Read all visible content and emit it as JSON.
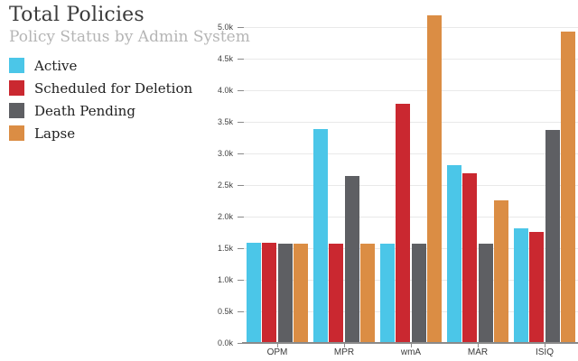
{
  "chart_data": {
    "type": "bar",
    "title": "Total Policies",
    "subtitle": "Policy Status by Admin System",
    "categories": [
      "OPM",
      "MPR",
      "wmA",
      "MAR",
      "ISIQ"
    ],
    "series": [
      {
        "name": "Active",
        "color": "#4bc6e8",
        "values": [
          1580,
          3390,
          1570,
          2820,
          1810
        ]
      },
      {
        "name": "Scheduled for Deletion",
        "color": "#ca2830",
        "values": [
          1580,
          1570,
          3790,
          2690,
          1760
        ]
      },
      {
        "name": "Death Pending",
        "color": "#5e5f63",
        "values": [
          1570,
          2640,
          1570,
          1570,
          3370
        ]
      },
      {
        "name": "Lapse",
        "color": "#db8d44",
        "values": [
          1570,
          1570,
          5190,
          2260,
          4930
        ]
      }
    ],
    "xlabel": "",
    "ylabel": "",
    "ylim": [
      0,
      5300
    ],
    "ytick_step": 500,
    "ytick_labels": [
      "0.0k",
      "0.5k",
      "1.0k",
      "1.5k",
      "2.0k",
      "2.5k",
      "3.0k",
      "3.5k",
      "4.0k",
      "4.5k",
      "5.0k"
    ],
    "grid": true,
    "legend_position": "top-left",
    "colors": {
      "title_text": "#3b3b3b",
      "subtitle_text": "#b5b5b5",
      "gridline": "#e9e9e9",
      "axis_line": "#8a8a8a",
      "axis_label": "#424242"
    }
  }
}
